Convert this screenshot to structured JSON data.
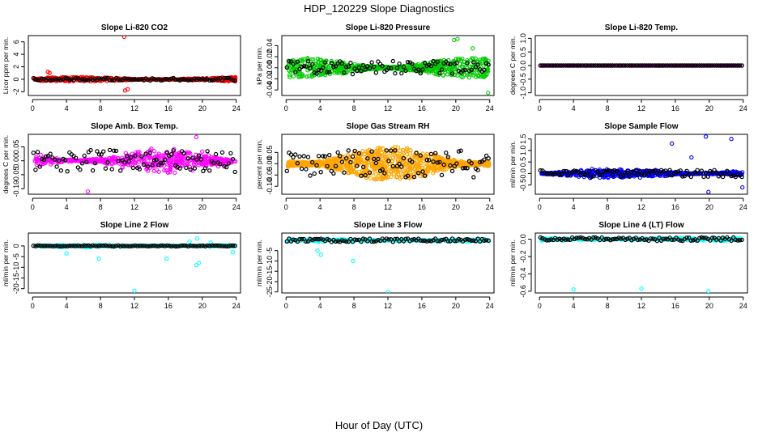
{
  "figure": {
    "title": "HDP_120229  Slope Diagnostics",
    "xlabel": "Hour of Day (UTC)"
  },
  "chart_data": [
    {
      "type": "scatter",
      "title": "Slope Li-820 CO2",
      "ylabel": "Licor ppm per min.",
      "color": "#ff0000",
      "secondary_color": "#000000",
      "xlim": [
        -0.5,
        24.5
      ],
      "ylim": [
        -2.6,
        7.0
      ],
      "xticks": [
        0,
        4,
        8,
        12,
        16,
        20,
        24
      ],
      "yticks": [
        -2,
        0,
        2,
        4,
        6
      ],
      "ytick_labels": [
        "-2",
        "0",
        "2",
        "4",
        "6"
      ],
      "series": [
        {
          "name": "primary",
          "spread": 0.35,
          "noise": "uniform",
          "count": 420,
          "outliers": [
            [
              10.8,
              6.8
            ],
            [
              10.9,
              -1.8
            ],
            [
              11.2,
              -1.6
            ],
            [
              1.8,
              1.2
            ],
            [
              2.0,
              1.0
            ]
          ]
        },
        {
          "name": "hourly",
          "spread": 0.2,
          "count": 96
        }
      ]
    },
    {
      "type": "scatter",
      "title": "Slope Li-820 Pressure",
      "ylabel": "kPa per min.",
      "color": "#00cc00",
      "secondary_color": "#000000",
      "xlim": [
        -0.5,
        24.5
      ],
      "ylim": [
        -0.05,
        0.058
      ],
      "xticks": [
        0,
        4,
        8,
        12,
        16,
        20,
        24
      ],
      "yticks": [
        -0.04,
        -0.02,
        0.0,
        0.02,
        0.04
      ],
      "ytick_labels": [
        "-0.04",
        "-0.02",
        "0.00",
        "0.02",
        "0.04"
      ],
      "series": [
        {
          "name": "primary",
          "spread": 0.018,
          "noise": "uniform",
          "count": 620,
          "outliers": [
            [
              19.8,
              0.05
            ],
            [
              20.2,
              0.052
            ],
            [
              23.8,
              -0.045
            ],
            [
              22.0,
              0.035
            ]
          ]
        },
        {
          "name": "hourly",
          "spread": 0.012,
          "count": 96
        }
      ]
    },
    {
      "type": "scatter",
      "title": "Slope Li-820 Temp.",
      "ylabel": "degrees C per min.",
      "color": "#ff00ff",
      "secondary_color": "#000000",
      "xlim": [
        -0.5,
        24.5
      ],
      "ylim": [
        -1.1,
        1.1
      ],
      "xticks": [
        0,
        4,
        8,
        12,
        16,
        20,
        24
      ],
      "yticks": [
        -1.0,
        -0.5,
        0.0,
        0.5,
        1.0
      ],
      "ytick_labels": [
        "-1.0",
        "-0.5",
        "0.0",
        "0.5",
        "1.0"
      ],
      "series": [
        {
          "name": "primary",
          "spread": 0.0,
          "noise": "uniform",
          "count": 200,
          "outliers": []
        },
        {
          "name": "hourly",
          "spread": 0.0,
          "count": 96
        }
      ]
    },
    {
      "type": "scatter",
      "title": "Slope Amb. Box Temp.",
      "ylabel": "degrees C per min.",
      "color": "#ff00ff",
      "secondary_color": "#000000",
      "xlim": [
        -0.5,
        24.5
      ],
      "ylim": [
        -0.12,
        0.095
      ],
      "xticks": [
        0,
        4,
        8,
        12,
        16,
        20,
        24
      ],
      "yticks": [
        -0.1,
        -0.05,
        0.0,
        0.05
      ],
      "ytick_labels": [
        "-0.10",
        "-0.05",
        "0.00",
        "0.05"
      ],
      "series": [
        {
          "name": "primary",
          "spread": 0.055,
          "noise": "gauss",
          "count": 520,
          "outliers": [
            [
              19.3,
              0.085
            ],
            [
              6.5,
              -0.11
            ]
          ]
        },
        {
          "name": "hourly",
          "spread": 0.04,
          "count": 96
        }
      ]
    },
    {
      "type": "scatter",
      "title": "Slope Gas Stream RH",
      "ylabel": "percent per min.",
      "color": "#ffa500",
      "secondary_color": "#000000",
      "xlim": [
        -0.5,
        24.5
      ],
      "ylim": [
        -0.135,
        0.13
      ],
      "xticks": [
        0,
        4,
        8,
        12,
        16,
        20,
        24
      ],
      "yticks": [
        -0.1,
        -0.05,
        0.0,
        0.05
      ],
      "ytick_labels": [
        "-0.10",
        "-0.05",
        "0.00",
        "0.05"
      ],
      "series": [
        {
          "name": "primary",
          "spread": 0.075,
          "noise": "uniform",
          "count": 900,
          "outliers": []
        },
        {
          "name": "hourly",
          "spread": 0.06,
          "count": 96
        }
      ]
    },
    {
      "type": "scatter",
      "title": "Slope Sample Flow",
      "ylabel": "ml/min per min.",
      "color": "#0000ff",
      "secondary_color": "#000000",
      "xlim": [
        -0.5,
        24.5
      ],
      "ylim": [
        -0.9,
        1.7
      ],
      "xticks": [
        0,
        4,
        8,
        12,
        16,
        20,
        24
      ],
      "yticks": [
        -0.5,
        0.0,
        0.5,
        1.0,
        1.5
      ],
      "ytick_labels": [
        "-0.5",
        "0.0",
        "0.5",
        "1.0",
        "1.5"
      ],
      "series": [
        {
          "name": "primary",
          "spread": 0.28,
          "noise": "gauss",
          "count": 620,
          "outliers": [
            [
              15.6,
              1.3
            ],
            [
              17.9,
              0.7
            ],
            [
              19.6,
              1.6
            ],
            [
              22.6,
              1.5
            ],
            [
              23.9,
              -0.6
            ],
            [
              19.9,
              -0.8
            ]
          ]
        },
        {
          "name": "hourly",
          "spread": 0.15,
          "count": 96
        }
      ]
    },
    {
      "type": "scatter",
      "title": "Slope Line 2 Flow",
      "ylabel": "ml/min per min.",
      "color": "#00ffff",
      "secondary_color": "#000000",
      "xlim": [
        -0.5,
        24.5
      ],
      "ylim": [
        -22,
        6
      ],
      "xticks": [
        0,
        4,
        8,
        12,
        16,
        20,
        24
      ],
      "yticks": [
        -20,
        -15,
        -10,
        -5,
        0
      ],
      "ytick_labels": [
        "-20",
        "-15",
        "-10",
        "-5",
        "0"
      ],
      "series": [
        {
          "name": "primary",
          "spread": 0.8,
          "noise": "gauss",
          "count": 220,
          "outliers": [
            [
              12.0,
              -21
            ],
            [
              4.0,
              -3.5
            ],
            [
              7.8,
              -6
            ],
            [
              15.8,
              -6
            ],
            [
              19.3,
              -9
            ],
            [
              19.6,
              -8
            ],
            [
              19.4,
              3.5
            ],
            [
              18.5,
              2
            ],
            [
              21.0,
              1.5
            ],
            [
              23.6,
              -3
            ]
          ]
        },
        {
          "name": "hourly",
          "spread": 0.2,
          "count": 96
        }
      ]
    },
    {
      "type": "scatter",
      "title": "Slope Line 3 Flow",
      "ylabel": "ml/min per min.",
      "color": "#00ffff",
      "secondary_color": "#000000",
      "xlim": [
        -0.5,
        24.5
      ],
      "ylim": [
        -25.5,
        3.5
      ],
      "xticks": [
        0,
        4,
        8,
        12,
        16,
        20,
        24
      ],
      "yticks": [
        -25,
        -20,
        -15,
        -10,
        -5
      ],
      "ytick_labels": [
        "-25",
        "-20",
        "-15",
        "-10",
        "-5"
      ],
      "series": [
        {
          "name": "primary",
          "spread": 1.0,
          "noise": "gauss",
          "count": 240,
          "outliers": [
            [
              12.0,
              -25
            ],
            [
              7.9,
              -10
            ],
            [
              3.7,
              -5
            ],
            [
              4.1,
              -7
            ]
          ]
        },
        {
          "name": "hourly",
          "spread": 0.8,
          "count": 96
        }
      ]
    },
    {
      "type": "scatter",
      "title": "Slope Line 4 (LT) Flow",
      "ylabel": "ml/min per min.",
      "color": "#00ffff",
      "secondary_color": "#000000",
      "xlim": [
        -0.5,
        24.5
      ],
      "ylim": [
        -0.62,
        0.07
      ],
      "xticks": [
        0,
        4,
        8,
        12,
        16,
        20,
        24
      ],
      "yticks": [
        -0.6,
        -0.4,
        -0.2,
        0.0
      ],
      "ytick_labels": [
        "-0.6",
        "-0.4",
        "-0.2",
        "0.0"
      ],
      "series": [
        {
          "name": "primary",
          "spread": 0.025,
          "noise": "gauss",
          "count": 300,
          "outliers": [
            [
              4.0,
              -0.58
            ],
            [
              12.0,
              -0.57
            ],
            [
              19.9,
              -0.6
            ]
          ]
        },
        {
          "name": "hourly",
          "spread": 0.02,
          "count": 96
        }
      ]
    }
  ]
}
